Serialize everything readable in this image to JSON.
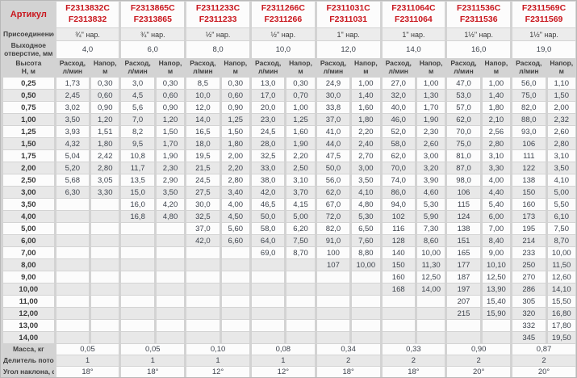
{
  "colors": {
    "red": "#c9171e",
    "gutter": "#d3d3d3",
    "row_light": "#fcfcfc",
    "row_dark": "#e8e8e8",
    "header_gray": "#ececec"
  },
  "labels": {
    "article": "Артикул",
    "connection": "Присоединение",
    "outlet_line1": "Выходное",
    "outlet_line2": "отверстие, мм",
    "height_line1": "Высота",
    "height_line2": "Н, м",
    "flow_line1": "Расход,",
    "flow_line2": "л/мин",
    "head_line1": "Напор,",
    "head_line2": "м",
    "mass": "Масса, кг",
    "divider": "Делитель потока",
    "angle": "Угол наклона, α"
  },
  "columns": [
    {
      "article_c": "F2313832C",
      "article": "F2313832",
      "connection": "¾\" нар.",
      "outlet": "4,0",
      "mass": "0,05",
      "divider": "1",
      "angle": "18°"
    },
    {
      "article_c": "F2313865C",
      "article": "F2313865",
      "connection": "¾\" нар.",
      "outlet": "6,0",
      "mass": "0,05",
      "divider": "1",
      "angle": "18°"
    },
    {
      "article_c": "F2311233C",
      "article": "F2311233",
      "connection": "½\" нар.",
      "outlet": "8,0",
      "mass": "0,10",
      "divider": "1",
      "angle": "12°"
    },
    {
      "article_c": "F2311266C",
      "article": "F2311266",
      "connection": "½\" нар.",
      "outlet": "10,0",
      "mass": "0,08",
      "divider": "1",
      "angle": "12°"
    },
    {
      "article_c": "F2311031C",
      "article": "F2311031",
      "connection": "1\" нар.",
      "outlet": "12,0",
      "mass": "0,34",
      "divider": "2",
      "angle": "18°"
    },
    {
      "article_c": "F2311064C",
      "article": "F2311064",
      "connection": "1\" нар.",
      "outlet": "14,0",
      "mass": "0,33",
      "divider": "2",
      "angle": "18°"
    },
    {
      "article_c": "F2311536C",
      "article": "F2311536",
      "connection": "1½\" нар.",
      "outlet": "16,0",
      "mass": "0,90",
      "divider": "2",
      "angle": "20°"
    },
    {
      "article_c": "F2311569C",
      "article": "F2311569",
      "connection": "1½\" нар.",
      "outlet": "19,0",
      "mass": "0,87",
      "divider": "2",
      "angle": "20°"
    }
  ],
  "heights": [
    "0,25",
    "0,50",
    "0,75",
    "1,00",
    "1,25",
    "1,50",
    "1,75",
    "2,00",
    "2,50",
    "3,00",
    "3,50",
    "4,00",
    "5,00",
    "6,00",
    "7,00",
    "8,00",
    "9,00",
    "10,00",
    "11,00",
    "12,00",
    "13,00",
    "14,00"
  ],
  "data": [
    [
      [
        "1,73",
        "0,30"
      ],
      [
        "2,45",
        "0,60"
      ],
      [
        "3,02",
        "0,90"
      ],
      [
        "3,50",
        "1,20"
      ],
      [
        "3,93",
        "1,51"
      ],
      [
        "4,32",
        "1,80"
      ],
      [
        "5,04",
        "2,42"
      ],
      [
        "5,20",
        "2,80"
      ],
      [
        "5,68",
        "3,05"
      ],
      [
        "6,30",
        "3,30"
      ],
      null,
      null,
      null,
      null,
      null,
      null,
      null,
      null,
      null,
      null,
      null,
      null
    ],
    [
      [
        "3,0",
        "0,30"
      ],
      [
        "4,5",
        "0,60"
      ],
      [
        "5,6",
        "0,90"
      ],
      [
        "7,0",
        "1,20"
      ],
      [
        "8,2",
        "1,50"
      ],
      [
        "9,5",
        "1,70"
      ],
      [
        "10,8",
        "1,90"
      ],
      [
        "11,7",
        "2,30"
      ],
      [
        "13,5",
        "2,90"
      ],
      [
        "15,0",
        "3,50"
      ],
      [
        "16,0",
        "4,20"
      ],
      [
        "16,8",
        "4,80"
      ],
      null,
      null,
      null,
      null,
      null,
      null,
      null,
      null,
      null,
      null
    ],
    [
      [
        "8,5",
        "0,30"
      ],
      [
        "10,0",
        "0,60"
      ],
      [
        "12,0",
        "0,90"
      ],
      [
        "14,0",
        "1,25"
      ],
      [
        "16,5",
        "1,50"
      ],
      [
        "18,0",
        "1,80"
      ],
      [
        "19,5",
        "2,00"
      ],
      [
        "21,5",
        "2,20"
      ],
      [
        "24,5",
        "2,80"
      ],
      [
        "27,5",
        "3,40"
      ],
      [
        "30,0",
        "4,00"
      ],
      [
        "32,5",
        "4,50"
      ],
      [
        "37,0",
        "5,60"
      ],
      [
        "42,0",
        "6,60"
      ],
      null,
      null,
      null,
      null,
      null,
      null,
      null,
      null
    ],
    [
      [
        "13,0",
        "0,30"
      ],
      [
        "17,0",
        "0,70"
      ],
      [
        "20,0",
        "1,00"
      ],
      [
        "23,0",
        "1,25"
      ],
      [
        "24,5",
        "1,60"
      ],
      [
        "28,0",
        "1,90"
      ],
      [
        "32,5",
        "2,20"
      ],
      [
        "33,0",
        "2,50"
      ],
      [
        "38,0",
        "3,10"
      ],
      [
        "42,0",
        "3,70"
      ],
      [
        "46,5",
        "4,15"
      ],
      [
        "50,0",
        "5,00"
      ],
      [
        "58,0",
        "6,20"
      ],
      [
        "64,0",
        "7,50"
      ],
      [
        "69,0",
        "8,70"
      ],
      null,
      null,
      null,
      null,
      null,
      null,
      null
    ],
    [
      [
        "24,9",
        "1,00"
      ],
      [
        "30,0",
        "1,40"
      ],
      [
        "33,8",
        "1,60"
      ],
      [
        "37,0",
        "1,80"
      ],
      [
        "41,0",
        "2,20"
      ],
      [
        "44,0",
        "2,40"
      ],
      [
        "47,5",
        "2,70"
      ],
      [
        "50,0",
        "3,00"
      ],
      [
        "56,0",
        "3,50"
      ],
      [
        "62,0",
        "4,10"
      ],
      [
        "67,0",
        "4,80"
      ],
      [
        "72,0",
        "5,30"
      ],
      [
        "82,0",
        "6,50"
      ],
      [
        "91,0",
        "7,60"
      ],
      [
        "100",
        "8,80"
      ],
      [
        "107",
        "10,00"
      ],
      null,
      null,
      null,
      null,
      null,
      null
    ],
    [
      [
        "27,0",
        "1,00"
      ],
      [
        "32,0",
        "1,30"
      ],
      [
        "40,0",
        "1,70"
      ],
      [
        "46,0",
        "1,90"
      ],
      [
        "52,0",
        "2,30"
      ],
      [
        "58,0",
        "2,60"
      ],
      [
        "62,0",
        "3,00"
      ],
      [
        "70,0",
        "3,20"
      ],
      [
        "74,0",
        "3,90"
      ],
      [
        "86,0",
        "4,60"
      ],
      [
        "94,0",
        "5,30"
      ],
      [
        "102",
        "5,90"
      ],
      [
        "116",
        "7,30"
      ],
      [
        "128",
        "8,60"
      ],
      [
        "140",
        "10,00"
      ],
      [
        "150",
        "11,30"
      ],
      [
        "160",
        "12,50"
      ],
      [
        "168",
        "14,00"
      ],
      null,
      null,
      null,
      null
    ],
    [
      [
        "47,0",
        "1,00"
      ],
      [
        "53,0",
        "1,40"
      ],
      [
        "57,0",
        "1,80"
      ],
      [
        "62,0",
        "2,10"
      ],
      [
        "70,0",
        "2,56"
      ],
      [
        "75,0",
        "2,80"
      ],
      [
        "81,0",
        "3,10"
      ],
      [
        "87,0",
        "3,30"
      ],
      [
        "98,0",
        "4,00"
      ],
      [
        "106",
        "4,40"
      ],
      [
        "115",
        "5,40"
      ],
      [
        "124",
        "6,00"
      ],
      [
        "138",
        "7,00"
      ],
      [
        "151",
        "8,40"
      ],
      [
        "165",
        "9,00"
      ],
      [
        "177",
        "10,10"
      ],
      [
        "187",
        "12,50"
      ],
      [
        "197",
        "13,90"
      ],
      [
        "207",
        "15,40"
      ],
      [
        "215",
        "15,90"
      ],
      null,
      null
    ],
    [
      [
        "56,0",
        "1,10"
      ],
      [
        "75,0",
        "1,50"
      ],
      [
        "82,0",
        "2,00"
      ],
      [
        "88,0",
        "2,32"
      ],
      [
        "93,0",
        "2,60"
      ],
      [
        "106",
        "2,80"
      ],
      [
        "111",
        "3,10"
      ],
      [
        "122",
        "3,50"
      ],
      [
        "138",
        "4,10"
      ],
      [
        "150",
        "5,00"
      ],
      [
        "160",
        "5,50"
      ],
      [
        "173",
        "6,10"
      ],
      [
        "195",
        "7,50"
      ],
      [
        "214",
        "8,70"
      ],
      [
        "233",
        "10,00"
      ],
      [
        "250",
        "11,50"
      ],
      [
        "270",
        "12,60"
      ],
      [
        "286",
        "14,10"
      ],
      [
        "305",
        "15,50"
      ],
      [
        "320",
        "16,80"
      ],
      [
        "332",
        "17,80"
      ],
      [
        "345",
        "19,50"
      ]
    ]
  ]
}
